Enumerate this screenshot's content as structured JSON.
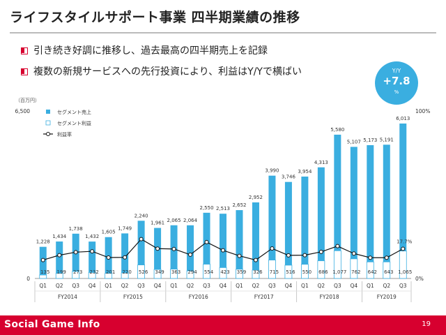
{
  "title": "ライフスタイルサポート事業 四半期業績の推移",
  "bullets": [
    "引き続き好調に推移し、過去最高の四半期売上を記録",
    "複数の新規サービスへの先行投資により、利益はY/Yで横ばい"
  ],
  "badge": {
    "label": "Y/Y",
    "value": "+7.8",
    "unit": "%"
  },
  "footer": {
    "logo": "Social Game Info",
    "page": "19"
  },
  "colors": {
    "sales": "#3aaee0",
    "profit_border": "#3aaee0",
    "line": "#111111",
    "accent": "#d7002f",
    "grid": "#cccccc"
  },
  "chart_data": {
    "type": "bar",
    "unit_label": "（百万円）",
    "y_left_ticks": [
      "6,500",
      "0"
    ],
    "ylim_left": [
      0,
      6500
    ],
    "y_right_ticks": [
      "100%",
      "0%"
    ],
    "ylim_right": [
      0,
      100
    ],
    "legend_position": "top-left",
    "categories": [
      "Q1",
      "Q2",
      "Q3",
      "Q4",
      "Q1",
      "Q2",
      "Q3",
      "Q4",
      "Q1",
      "Q2",
      "Q3",
      "Q4",
      "Q1",
      "Q2",
      "Q3",
      "Q4",
      "Q1",
      "Q2",
      "Q3",
      "Q4",
      "Q1",
      "Q2",
      "Q3"
    ],
    "fiscal_years": [
      {
        "label": "FY2014",
        "count": 4
      },
      {
        "label": "FY2015",
        "count": 4
      },
      {
        "label": "FY2016",
        "count": 4
      },
      {
        "label": "FY2017",
        "count": 4
      },
      {
        "label": "FY2018",
        "count": 4
      },
      {
        "label": "FY2019",
        "count": 3
      }
    ],
    "series": [
      {
        "name": "セグメント売上",
        "kind": "bar",
        "values": [
          1228,
          1434,
          1738,
          1432,
          1605,
          1749,
          2240,
          1961,
          2065,
          2064,
          2550,
          2513,
          2652,
          2952,
          3990,
          3746,
          3954,
          4313,
          5580,
          5107,
          5173,
          5191,
          6013
        ],
        "labels": [
          "1,228",
          "1,434",
          "1,738",
          "1,432",
          "1,605",
          "1,749",
          "2,240",
          "1,961",
          "2,065",
          "2,064",
          "2,550",
          "2,513",
          "2,652",
          "2,952",
          "3,990",
          "3,746",
          "3,954",
          "4,313",
          "5,580",
          "5,107",
          "5,173",
          "5,191",
          "6,013"
        ]
      },
      {
        "name": "セグメント利益",
        "kind": "bar-outline",
        "values": [
          135,
          199,
          273,
          232,
          201,
          220,
          526,
          349,
          363,
          294,
          554,
          423,
          359,
          326,
          715,
          516,
          550,
          686,
          1077,
          762,
          642,
          643,
          1065
        ],
        "labels": [
          "135",
          "199",
          "273",
          "232",
          "201",
          "220",
          "526",
          "349",
          "363",
          "294",
          "554",
          "423",
          "359",
          "326",
          "715",
          "516",
          "550",
          "686",
          "1,077",
          "762",
          "642",
          "643",
          "1,065"
        ]
      },
      {
        "name": "利益率",
        "kind": "line",
        "values": [
          11.0,
          13.9,
          15.7,
          16.2,
          12.5,
          12.6,
          23.5,
          17.8,
          17.6,
          14.2,
          21.7,
          16.8,
          13.5,
          11.0,
          17.9,
          13.8,
          13.9,
          15.9,
          19.3,
          14.9,
          12.4,
          12.4,
          17.7
        ],
        "last_label": "17.7%"
      }
    ]
  }
}
